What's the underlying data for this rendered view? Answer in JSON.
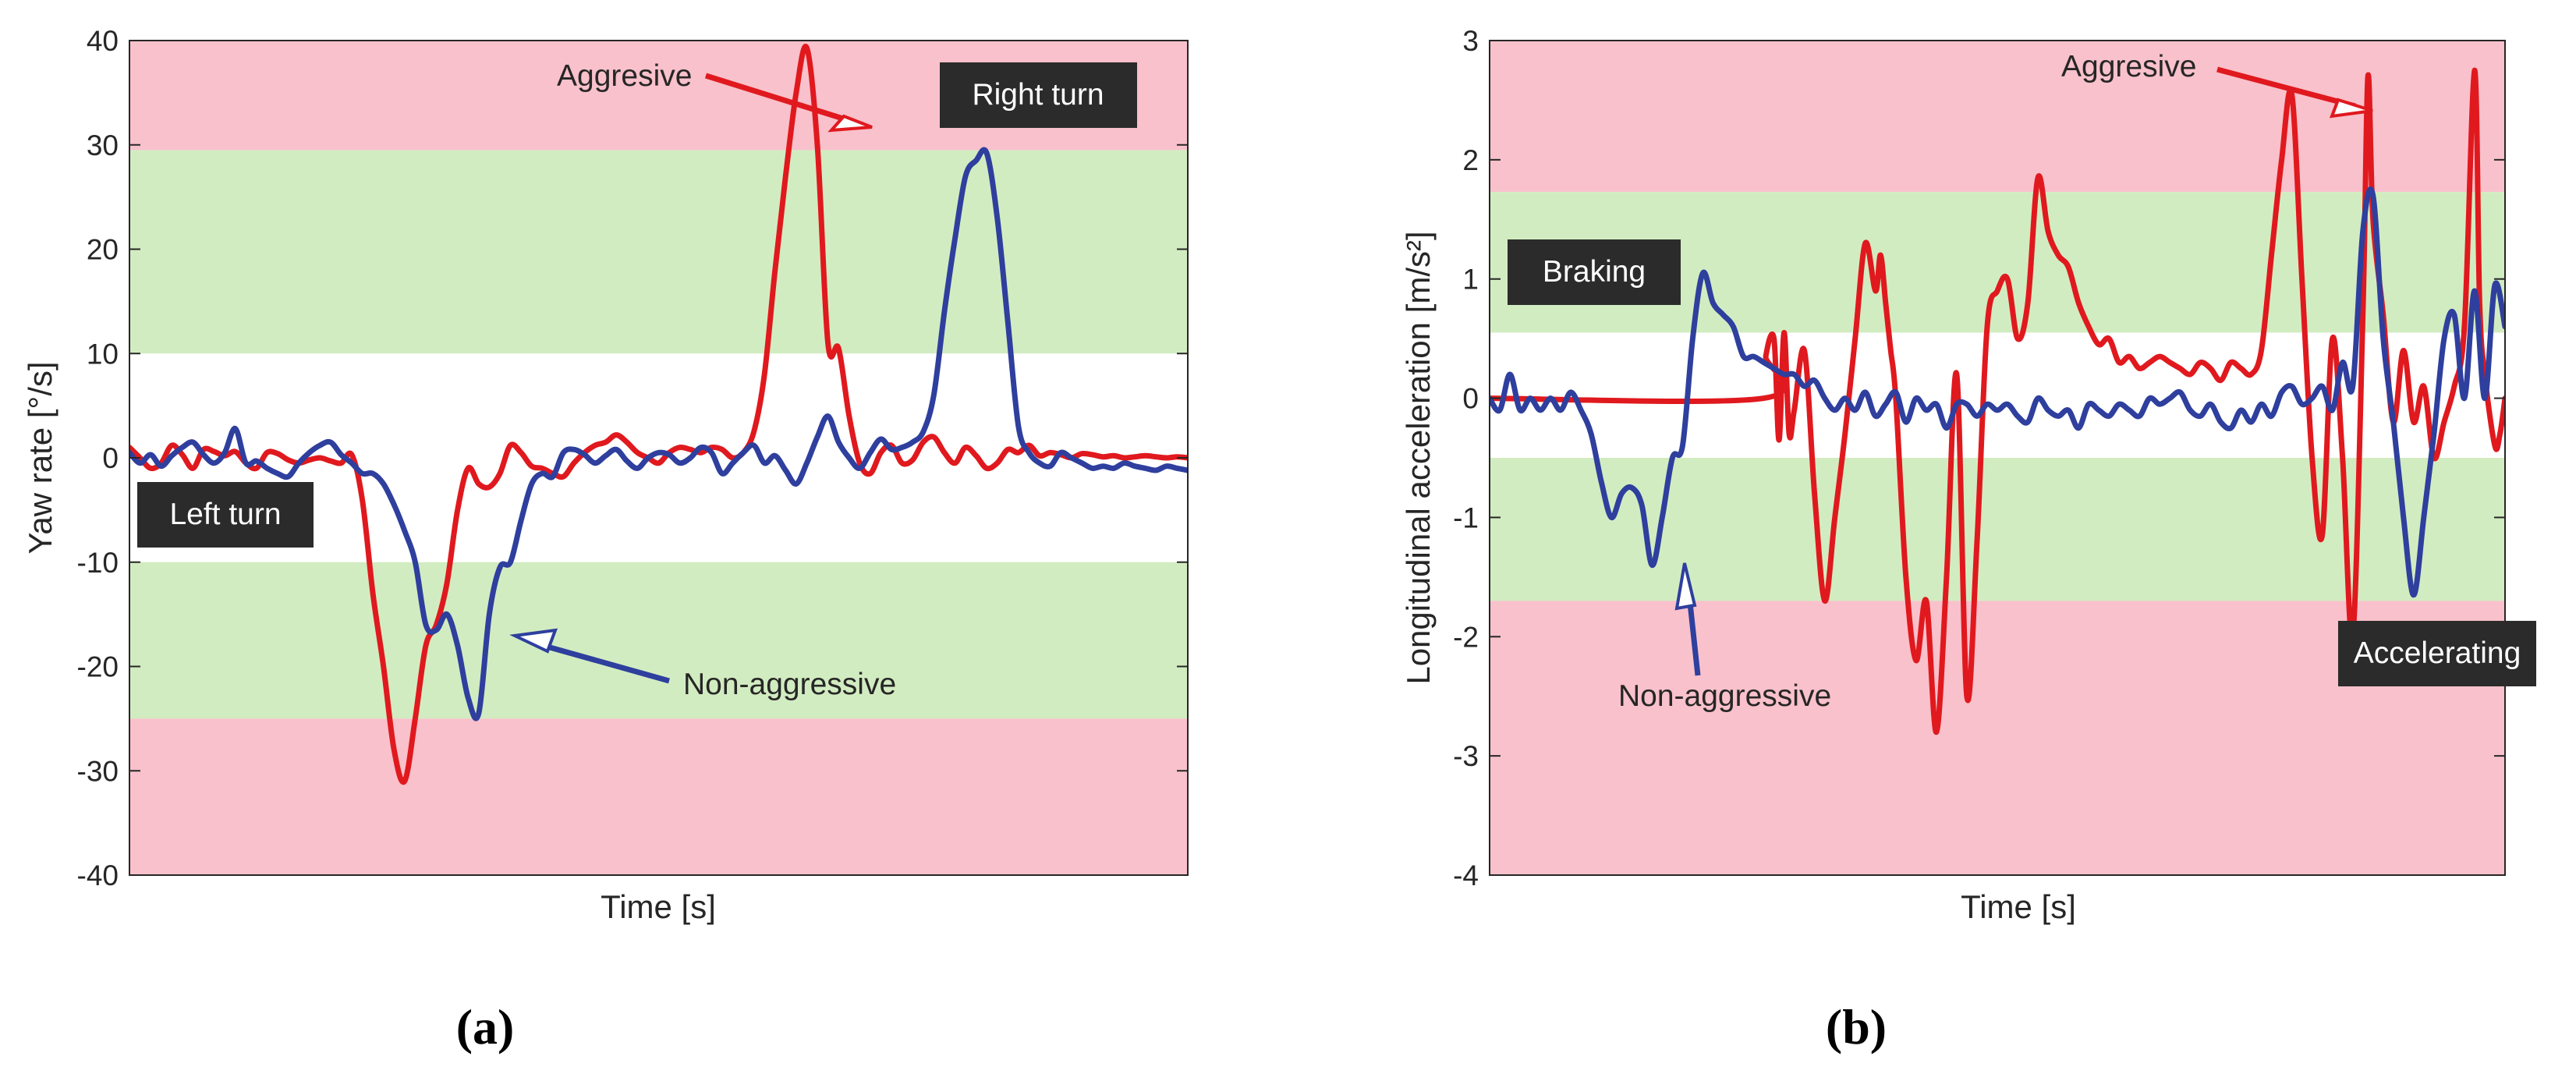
{
  "colors": {
    "aggressive": "#e0191e",
    "non_aggressive": "#2e3f9e",
    "red_band": "#f9c1cb",
    "green_band": "#d2ecc1",
    "label_box": "#2b2b2b"
  },
  "chart_data": [
    {
      "type": "line",
      "panel_label": "(a)",
      "title": "",
      "xlabel": "Time [s]",
      "ylabel": "Yaw rate [°/s]",
      "ylim": [
        -40,
        40
      ],
      "yticks": [
        -40,
        -30,
        -20,
        -10,
        0,
        10,
        20,
        30,
        40
      ],
      "xlim": [
        0,
        100
      ],
      "bands": [
        {
          "name": "aggressive-zone",
          "from": 29.5,
          "to": 40,
          "color": "red"
        },
        {
          "name": "moderate-zone",
          "from": 10,
          "to": 29.5,
          "color": "green"
        },
        {
          "name": "moderate-zone",
          "from": -25,
          "to": -10,
          "color": "green"
        },
        {
          "name": "aggressive-zone",
          "from": -40,
          "to": -25,
          "color": "red"
        }
      ],
      "series": [
        {
          "name": "Aggressive",
          "x": [
            0,
            1,
            2,
            3,
            4,
            5,
            6,
            7,
            8,
            9,
            10,
            11,
            12,
            13,
            14,
            15,
            16,
            17,
            18,
            19,
            20,
            21,
            22,
            23,
            24,
            25,
            26,
            27,
            28,
            29,
            30,
            31,
            32,
            33,
            34,
            35,
            36,
            37,
            38,
            39,
            40,
            41,
            42,
            43,
            44,
            45,
            46,
            47,
            48,
            49,
            50,
            51,
            52,
            53,
            54,
            55,
            56,
            57,
            58,
            59,
            60,
            61,
            62,
            63,
            64,
            65,
            66,
            67,
            68,
            69,
            70,
            71,
            72,
            73,
            74,
            75,
            76,
            77,
            78,
            79,
            80,
            81,
            82,
            83,
            84,
            85,
            86,
            87,
            88,
            89,
            90,
            91,
            92,
            93,
            94,
            95,
            96,
            97,
            98,
            99,
            100
          ],
          "values": [
            1,
            0,
            -1,
            -0.5,
            1.2,
            0.3,
            -1,
            0.8,
            0.6,
            0.2,
            0.6,
            -0.5,
            -1,
            0.5,
            0.4,
            -0.2,
            -0.5,
            -0.2,
            0,
            -0.3,
            -0.5,
            0.3,
            -4,
            -13,
            -20,
            -28,
            -31,
            -25,
            -18,
            -16,
            -12,
            -5,
            -1,
            -2.5,
            -2.8,
            -1.5,
            1.2,
            0.5,
            -0.8,
            -1,
            -1.5,
            -1.8,
            -0.5,
            0.5,
            1.2,
            1.5,
            2.2,
            1.5,
            0.5,
            0,
            -0.5,
            0.5,
            1,
            0.8,
            0.5,
            1,
            0.8,
            0,
            0.5,
            2.5,
            8,
            18,
            27,
            35,
            39.3,
            30,
            11,
            10.5,
            4,
            -0.5,
            -1.5,
            0.5,
            1.2,
            -0.5,
            -0.2,
            1.5,
            2,
            0.5,
            -0.5,
            1,
            0.2,
            -1,
            -0.5,
            0.8,
            0.5,
            1.2,
            0.2,
            0.5,
            0.3,
            0,
            0.4,
            0.3,
            0.1,
            0.2,
            0,
            0.1,
            0.2,
            0.1,
            0,
            0.1,
            0
          ]
        },
        {
          "name": "Non-aggressive",
          "x": [
            0,
            1,
            2,
            3,
            4,
            5,
            6,
            7,
            8,
            9,
            10,
            11,
            12,
            13,
            14,
            15,
            16,
            17,
            18,
            19,
            20,
            21,
            22,
            23,
            24,
            25,
            26,
            27,
            28,
            29,
            30,
            31,
            32,
            33,
            34,
            35,
            36,
            37,
            38,
            39,
            40,
            41,
            42,
            43,
            44,
            45,
            46,
            47,
            48,
            49,
            50,
            51,
            52,
            53,
            54,
            55,
            56,
            57,
            58,
            59,
            60,
            61,
            62,
            63,
            64,
            65,
            66,
            67,
            68,
            69,
            70,
            71,
            72,
            73,
            74,
            75,
            76,
            77,
            78,
            79,
            80,
            81,
            82,
            83,
            84,
            85,
            86,
            87,
            88,
            89,
            90,
            91,
            92,
            93,
            94,
            95,
            96,
            97,
            98,
            99,
            100
          ],
          "values": [
            0.5,
            -0.5,
            0.3,
            -0.8,
            0.2,
            1,
            1.5,
            0.3,
            -0.5,
            0.5,
            2.8,
            -0.5,
            -0.3,
            -1,
            -1.5,
            -1.8,
            -0.5,
            0.5,
            1.2,
            1.5,
            0.3,
            -0.5,
            -1.5,
            -1.5,
            -2.5,
            -4.5,
            -7,
            -10,
            -16,
            -16.5,
            -15,
            -18,
            -23,
            -24.5,
            -15,
            -10.5,
            -10,
            -6,
            -2.5,
            -1.5,
            -1.8,
            0.5,
            0.8,
            0.3,
            -0.5,
            0.2,
            0.8,
            -0.3,
            -1,
            0,
            0.5,
            0.3,
            -0.5,
            0,
            1,
            0.5,
            -1.5,
            -0.5,
            0.5,
            1.2,
            -0.5,
            0.2,
            -1.2,
            -2.5,
            -0.5,
            2,
            4,
            1.5,
            0,
            -1,
            0.5,
            1.8,
            0.8,
            1,
            1.5,
            2.5,
            6,
            14,
            21,
            27,
            28.5,
            29.2,
            23,
            13,
            3,
            0.5,
            -0.5,
            -0.8,
            0.5,
            0,
            -0.5,
            -1,
            -0.8,
            -1,
            -0.5,
            -0.8,
            -1,
            -1.2,
            -0.8,
            -1,
            -1.2
          ]
        }
      ],
      "annotations": [
        {
          "text": "Aggresive",
          "target_series": "Aggressive"
        },
        {
          "text": "Non-aggressive",
          "target_series": "Non-aggressive"
        }
      ],
      "labels": [
        "Right turn",
        "Left turn"
      ]
    },
    {
      "type": "line",
      "panel_label": "(b)",
      "title": "",
      "xlabel": "Time [s]",
      "ylabel": "Longitudinal acceleration [m/s²]",
      "ylim": [
        -4,
        3
      ],
      "yticks": [
        -4,
        -3,
        -2,
        -1,
        0,
        1,
        2,
        3
      ],
      "xlim": [
        0,
        100
      ],
      "bands": [
        {
          "name": "aggressive-zone",
          "from": 1.73,
          "to": 3,
          "color": "red"
        },
        {
          "name": "moderate-zone",
          "from": 0.55,
          "to": 1.73,
          "color": "green"
        },
        {
          "name": "moderate-zone",
          "from": -1.7,
          "to": -0.5,
          "color": "green"
        },
        {
          "name": "aggressive-zone",
          "from": -4,
          "to": -1.7,
          "color": "red"
        }
      ],
      "series": [
        {
          "name": "Aggressive",
          "x": [
            0,
            27,
            27.2,
            28,
            28.5,
            29,
            29.5,
            30,
            31,
            32,
            33,
            34,
            35,
            36,
            37,
            38,
            38.5,
            39,
            39.5,
            40,
            41,
            42,
            43,
            44,
            45,
            46,
            47,
            48,
            49,
            50,
            51,
            52,
            53,
            54,
            55,
            56,
            57,
            58,
            59,
            60,
            61,
            62,
            63,
            64,
            65,
            66,
            67,
            68,
            69,
            70,
            71,
            72,
            73,
            74,
            75,
            76,
            77,
            78,
            79,
            80,
            81,
            82,
            83,
            84,
            85,
            86,
            86.5,
            87,
            88,
            89,
            90,
            91,
            92,
            93,
            94,
            95,
            96,
            97,
            97.5,
            98,
            99,
            99.5,
            100
          ],
          "values": [
            0,
            0,
            0.35,
            0.5,
            -0.35,
            0.55,
            -0.3,
            -0.1,
            0.4,
            -0.8,
            -1.7,
            -1,
            -0.3,
            0.5,
            1.3,
            0.9,
            1.2,
            0.8,
            0.4,
            0,
            -1.5,
            -2.2,
            -1.7,
            -2.8,
            -1.5,
            0.2,
            -2.5,
            -1.2,
            0.6,
            0.9,
            1,
            0.5,
            0.8,
            1.85,
            1.4,
            1.2,
            1.1,
            0.8,
            0.6,
            0.45,
            0.5,
            0.3,
            0.35,
            0.25,
            0.3,
            0.35,
            0.3,
            0.25,
            0.2,
            0.3,
            0.25,
            0.15,
            0.3,
            0.25,
            0.2,
            0.4,
            1.2,
            2,
            2.55,
            1,
            -0.5,
            -1.15,
            0.5,
            -0.5,
            -2.0,
            0.7,
            2.7,
            1.5,
            0.7,
            -0.2,
            0.4,
            -0.2,
            0.1,
            -0.5,
            -0.2,
            0.1,
            0.6,
            2.75,
            0.8,
            0.2,
            -0.4,
            -0.3,
            0
          ]
        },
        {
          "name": "Non-aggressive",
          "x": [
            0,
            1,
            2,
            3,
            4,
            5,
            6,
            7,
            8,
            9,
            10,
            11,
            12,
            13,
            14,
            15,
            16,
            17,
            18,
            19,
            20,
            21,
            22,
            23,
            24,
            25,
            26,
            27,
            28,
            29,
            30,
            31,
            32,
            33,
            34,
            35,
            36,
            37,
            38,
            39,
            40,
            41,
            42,
            43,
            44,
            45,
            46,
            47,
            48,
            49,
            50,
            51,
            52,
            53,
            54,
            55,
            56,
            57,
            58,
            59,
            60,
            61,
            62,
            63,
            64,
            65,
            66,
            67,
            68,
            69,
            70,
            71,
            72,
            73,
            74,
            75,
            76,
            77,
            78,
            79,
            80,
            81,
            82,
            83,
            84,
            85,
            86,
            87,
            88,
            89,
            90,
            91,
            92,
            93,
            94,
            95,
            96,
            97,
            98,
            99,
            100
          ],
          "values": [
            0,
            -0.1,
            0.2,
            -0.1,
            0,
            -0.1,
            0,
            -0.1,
            0.05,
            -0.1,
            -0.3,
            -0.7,
            -1.0,
            -0.8,
            -0.75,
            -0.9,
            -1.4,
            -1.0,
            -0.5,
            -0.4,
            0.5,
            1.05,
            0.8,
            0.7,
            0.6,
            0.35,
            0.35,
            0.3,
            0.25,
            0.2,
            0.2,
            0.1,
            0.15,
            0,
            -0.1,
            0,
            -0.1,
            0.05,
            -0.15,
            -0.05,
            0.05,
            -0.2,
            0,
            -0.1,
            -0.05,
            -0.25,
            -0.05,
            -0.05,
            -0.15,
            -0.05,
            -0.1,
            -0.05,
            -0.15,
            -0.2,
            0,
            -0.1,
            -0.15,
            -0.1,
            -0.25,
            -0.05,
            -0.1,
            -0.15,
            -0.05,
            -0.1,
            -0.15,
            0,
            -0.05,
            0,
            0.05,
            -0.1,
            -0.15,
            -0.05,
            -0.2,
            -0.25,
            -0.1,
            -0.2,
            -0.05,
            -0.15,
            0.05,
            0.1,
            -0.05,
            0,
            0.1,
            -0.1,
            0.3,
            0.1,
            1.4,
            1.7,
            0.5,
            -0.2,
            -1.0,
            -1.65,
            -1.0,
            -0.3,
            0.5,
            0.7,
            0,
            0.9,
            0,
            0.95,
            0.6
          ]
        }
      ],
      "annotations": [
        {
          "text": "Aggresive",
          "target_series": "Aggressive"
        },
        {
          "text": "Non-aggressive",
          "target_series": "Non-aggressive"
        }
      ],
      "labels": [
        "Braking",
        "Accelerating"
      ]
    }
  ]
}
